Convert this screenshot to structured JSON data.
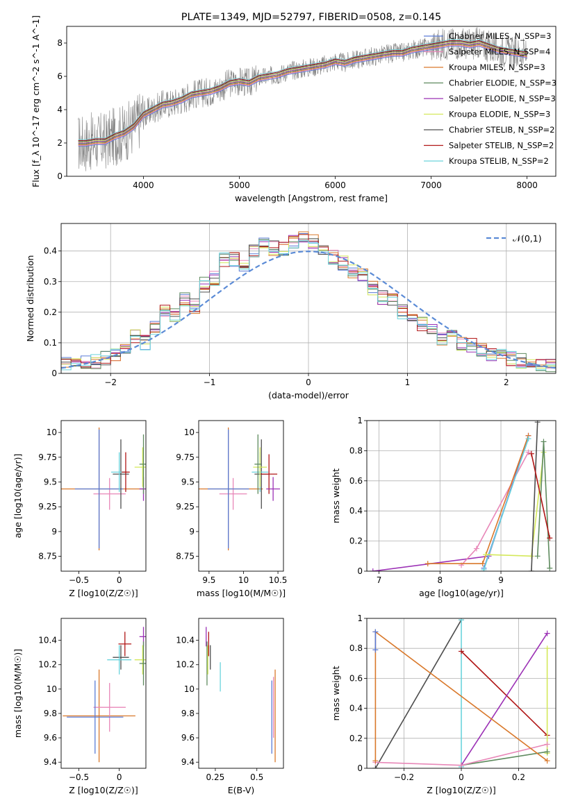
{
  "colors": {
    "chabrier_miles": "#5a7bd6",
    "salpeter_miles": "#e887b8",
    "kroupa_miles": "#d9782a",
    "chabrier_elodie": "#5e8a5e",
    "salpeter_elodie": "#9b30b5",
    "kroupa_elodie": "#d4e85a",
    "chabrier_stelib": "#4d4d4d",
    "salpeter_stelib": "#b01515",
    "kroupa_stelib": "#6ad3dc",
    "data_spectrum": "#7f7f7f",
    "normal_curve": "#5b8bd6",
    "grid": "#b0b0b0"
  },
  "chart_data": [
    {
      "type": "line",
      "id": "spectrum",
      "title": "PLATE=1349, MJD=52797, FIBERID=0508, z=0.145",
      "xlabel": "wavelength [Angstrom, rest frame]",
      "ylabel": "Flux [f_λ 10^-17 erg cm^-2 s^-1 A^-1]",
      "xlim": [
        3200,
        8300
      ],
      "ylim": [
        0,
        9
      ],
      "xticks": [
        4000,
        5000,
        6000,
        7000,
        8000
      ],
      "yticks": [
        0,
        2,
        4,
        6,
        8
      ],
      "grid": false,
      "legend_position": "top-right",
      "legend": [
        {
          "label": "Chabrier MILES, N_SSP=3",
          "color_key": "chabrier_miles"
        },
        {
          "label": "Salpeter MILES, N_SSP=4",
          "color_key": "salpeter_miles"
        },
        {
          "label": "Kroupa MILES, N_SSP=3",
          "color_key": "kroupa_miles"
        },
        {
          "label": "Chabrier ELODIE, N_SSP=3",
          "color_key": "chabrier_elodie"
        },
        {
          "label": "Salpeter ELODIE, N_SSP=3",
          "color_key": "salpeter_elodie"
        },
        {
          "label": "Kroupa ELODIE, N_SSP=3",
          "color_key": "kroupa_elodie"
        },
        {
          "label": "Chabrier STELIB, N_SSP=2",
          "color_key": "chabrier_stelib"
        },
        {
          "label": "Salpeter STELIB, N_SSP=2",
          "color_key": "salpeter_stelib"
        },
        {
          "label": "Kroupa STELIB, N_SSP=2",
          "color_key": "kroupa_stelib"
        }
      ],
      "model_curve": {
        "x": [
          3320,
          3400,
          3500,
          3600,
          3700,
          3800,
          3900,
          4000,
          4100,
          4200,
          4300,
          4400,
          4500,
          4600,
          4700,
          4800,
          4900,
          5000,
          5100,
          5200,
          5300,
          5400,
          5500,
          5600,
          5700,
          5800,
          5900,
          6000,
          6100,
          6200,
          6300,
          6400,
          6500,
          6600,
          6700,
          6800,
          6900,
          7000,
          7100,
          7200,
          7300,
          7400,
          7500,
          7600,
          7700,
          7800,
          7900,
          8000
        ],
        "y": [
          2.0,
          2.0,
          2.1,
          2.1,
          2.4,
          2.6,
          3.0,
          3.7,
          4.0,
          4.3,
          4.4,
          4.6,
          4.9,
          5.0,
          5.1,
          5.3,
          5.6,
          5.7,
          5.6,
          5.9,
          6.0,
          6.1,
          6.3,
          6.4,
          6.5,
          6.6,
          6.7,
          6.9,
          6.8,
          7.0,
          7.1,
          7.2,
          7.3,
          7.4,
          7.4,
          7.6,
          7.7,
          7.8,
          7.9,
          8.0,
          8.0,
          7.9,
          8.0,
          7.8,
          7.6,
          7.5,
          7.4,
          7.3
        ]
      }
    },
    {
      "type": "line",
      "id": "residuals",
      "xlabel": "(data-model)/error",
      "ylabel": "Normed distribution",
      "xlim": [
        -2.5,
        2.5
      ],
      "ylim": [
        0,
        0.49
      ],
      "xticks": [
        -2,
        -1,
        0,
        1,
        2
      ],
      "yticks": [
        0.0,
        0.1,
        0.2,
        0.3,
        0.4
      ],
      "grid": true,
      "legend_position": "top-right",
      "legend_label": "𝒩(0,1)",
      "histogram": {
        "x": [
          -2.45,
          -2.35,
          -2.25,
          -2.15,
          -2.05,
          -1.95,
          -1.85,
          -1.75,
          -1.65,
          -1.55,
          -1.45,
          -1.35,
          -1.25,
          -1.15,
          -1.05,
          -0.95,
          -0.85,
          -0.75,
          -0.65,
          -0.55,
          -0.45,
          -0.35,
          -0.25,
          -0.15,
          -0.05,
          0.05,
          0.15,
          0.25,
          0.35,
          0.45,
          0.55,
          0.65,
          0.75,
          0.85,
          0.95,
          1.05,
          1.15,
          1.25,
          1.35,
          1.45,
          1.55,
          1.65,
          1.75,
          1.85,
          1.95,
          2.05,
          2.15,
          2.25,
          2.35,
          2.45
        ],
        "y": [
          0.035,
          0.03,
          0.035,
          0.04,
          0.05,
          0.06,
          0.07,
          0.12,
          0.1,
          0.15,
          0.2,
          0.19,
          0.24,
          0.22,
          0.29,
          0.31,
          0.37,
          0.37,
          0.35,
          0.4,
          0.42,
          0.41,
          0.41,
          0.43,
          0.44,
          0.43,
          0.4,
          0.38,
          0.36,
          0.33,
          0.32,
          0.28,
          0.25,
          0.24,
          0.2,
          0.19,
          0.16,
          0.14,
          0.11,
          0.13,
          0.1,
          0.09,
          0.08,
          0.06,
          0.06,
          0.05,
          0.04,
          0.03,
          0.03,
          0.025
        ]
      }
    },
    {
      "type": "scatter",
      "id": "age_vs_Z",
      "xlabel": "Z [log10(Z/Z☉)]",
      "ylabel": "age [log10(age/yr)]",
      "xlim": [
        -0.72,
        0.33
      ],
      "ylim": [
        8.6,
        10.12
      ],
      "xticks": [
        -0.5,
        0.0
      ],
      "yticks": [
        8.75,
        9.0,
        9.25,
        9.5,
        9.75,
        10.0
      ],
      "grid": false,
      "points": [
        {
          "key": "kroupa_miles",
          "x": -0.25,
          "y": 9.43,
          "xerr": 0.55,
          "yerr": 0.62
        },
        {
          "key": "salpeter_miles",
          "x": -0.12,
          "y": 9.38,
          "xerr": 0.2,
          "yerr": 0.16
        },
        {
          "key": "chabrier_miles",
          "x": -0.25,
          "y": 9.43,
          "xerr": 0.3,
          "yerr": 0.6
        },
        {
          "key": "chabrier_stelib",
          "x": 0.02,
          "y": 9.58,
          "xerr": 0.1,
          "yerr": 0.35
        },
        {
          "key": "kroupa_stelib",
          "x": 0.0,
          "y": 9.6,
          "xerr": 0.1,
          "yerr": 0.2
        },
        {
          "key": "salpeter_stelib",
          "x": 0.08,
          "y": 9.6,
          "xerr": 0.05,
          "yerr": 0.2
        },
        {
          "key": "salpeter_elodie",
          "x": 0.3,
          "y": 9.43,
          "xerr": 0.05,
          "yerr": 0.12
        },
        {
          "key": "kroupa_elodie",
          "x": 0.29,
          "y": 9.65,
          "xerr": 0.1,
          "yerr": 0.2
        },
        {
          "key": "chabrier_elodie",
          "x": 0.3,
          "y": 9.68,
          "xerr": 0.05,
          "yerr": 0.3
        }
      ]
    },
    {
      "type": "scatter",
      "id": "age_vs_mass",
      "xlabel": "mass [log10(M/M☉)]",
      "ylabel": "",
      "xlim": [
        9.35,
        10.58
      ],
      "ylim": [
        8.6,
        10.12
      ],
      "xticks": [
        9.5,
        10.0,
        10.5
      ],
      "yticks": [
        8.75,
        9.0,
        9.25,
        9.5,
        9.75,
        10.0
      ],
      "grid": false,
      "points": [
        {
          "key": "kroupa_miles",
          "x": 9.78,
          "y": 9.43,
          "xerr": 0.5,
          "yerr": 0.62
        },
        {
          "key": "salpeter_miles",
          "x": 9.85,
          "y": 9.38,
          "xerr": 0.2,
          "yerr": 0.16
        },
        {
          "key": "chabrier_miles",
          "x": 9.78,
          "y": 9.43,
          "xerr": 0.3,
          "yerr": 0.6
        },
        {
          "key": "chabrier_stelib",
          "x": 10.26,
          "y": 9.58,
          "xerr": 0.1,
          "yerr": 0.35
        },
        {
          "key": "kroupa_stelib",
          "x": 10.24,
          "y": 9.6,
          "xerr": 0.12,
          "yerr": 0.2
        },
        {
          "key": "salpeter_stelib",
          "x": 10.37,
          "y": 9.58,
          "xerr": 0.12,
          "yerr": 0.2
        },
        {
          "key": "salpeter_elodie",
          "x": 10.43,
          "y": 9.43,
          "xerr": 0.1,
          "yerr": 0.12
        },
        {
          "key": "kroupa_elodie",
          "x": 10.24,
          "y": 9.65,
          "xerr": 0.1,
          "yerr": 0.2
        },
        {
          "key": "chabrier_elodie",
          "x": 10.21,
          "y": 9.68,
          "xerr": 0.05,
          "yerr": 0.3
        }
      ]
    },
    {
      "type": "line",
      "id": "weight_vs_age",
      "xlabel": "age [log10(age/yr)]",
      "ylabel": "mass weight",
      "xlim": [
        6.8,
        9.9
      ],
      "ylim": [
        0,
        1.0
      ],
      "xticks": [
        7,
        8,
        9
      ],
      "yticks": [
        0.0,
        0.2,
        0.4,
        0.6,
        0.8,
        1.0
      ],
      "grid": true,
      "series": [
        {
          "key": "salpeter_elodie",
          "x": [
            6.9,
            8.8,
            9.45
          ],
          "y": [
            0.0,
            0.1,
            0.9
          ]
        },
        {
          "key": "salpeter_miles",
          "x": [
            8.35,
            8.6,
            9.45
          ],
          "y": [
            0.04,
            0.15,
            0.79
          ]
        },
        {
          "key": "kroupa_miles",
          "x": [
            7.8,
            8.7,
            9.45
          ],
          "y": [
            0.05,
            0.05,
            0.9
          ]
        },
        {
          "key": "chabrier_miles",
          "x": [
            8.72,
            9.45
          ],
          "y": [
            0.02,
            0.88
          ]
        },
        {
          "key": "kroupa_stelib",
          "x": [
            8.72,
            9.45
          ],
          "y": [
            0.01,
            0.88
          ]
        },
        {
          "key": "kroupa_elodie",
          "x": [
            8.75,
            9.5,
            9.7
          ],
          "y": [
            0.11,
            0.1,
            0.79
          ]
        },
        {
          "key": "chabrier_elodie",
          "x": [
            9.6,
            9.7,
            9.8
          ],
          "y": [
            0.1,
            0.86,
            0.02
          ]
        },
        {
          "key": "chabrier_stelib",
          "x": [
            9.5,
            9.6
          ],
          "y": [
            0.0,
            0.99
          ]
        },
        {
          "key": "salpeter_stelib",
          "x": [
            9.5,
            9.8
          ],
          "y": [
            0.78,
            0.22
          ]
        }
      ]
    },
    {
      "type": "scatter",
      "id": "mass_vs_Z",
      "xlabel": "Z [log10(Z/Z☉)]",
      "ylabel": "mass [log10(M/M☉)]",
      "xlim": [
        -0.72,
        0.33
      ],
      "ylim": [
        9.35,
        10.58
      ],
      "xticks": [
        -0.5,
        0.0
      ],
      "yticks": [
        9.4,
        9.6,
        9.8,
        10.0,
        10.2,
        10.4
      ],
      "grid": false,
      "points": [
        {
          "key": "kroupa_miles",
          "x": -0.25,
          "y": 9.78,
          "xerr": 0.45,
          "yerr": 0.38
        },
        {
          "key": "salpeter_miles",
          "x": -0.12,
          "y": 9.85,
          "xerr": 0.2,
          "yerr": 0.2
        },
        {
          "key": "chabrier_miles",
          "x": -0.3,
          "y": 9.77,
          "xerr": 0.35,
          "yerr": 0.3
        },
        {
          "key": "chabrier_stelib",
          "x": 0.02,
          "y": 10.26,
          "xerr": 0.1,
          "yerr": 0.1
        },
        {
          "key": "kroupa_stelib",
          "x": 0.0,
          "y": 10.24,
          "xerr": 0.15,
          "yerr": 0.12
        },
        {
          "key": "salpeter_stelib",
          "x": 0.07,
          "y": 10.37,
          "xerr": 0.08,
          "yerr": 0.1
        },
        {
          "key": "salpeter_elodie",
          "x": 0.3,
          "y": 10.43,
          "xerr": 0.05,
          "yerr": 0.08
        },
        {
          "key": "kroupa_elodie",
          "x": 0.29,
          "y": 10.24,
          "xerr": 0.1,
          "yerr": 0.12
        },
        {
          "key": "chabrier_elodie",
          "x": 0.3,
          "y": 10.21,
          "xerr": 0.05,
          "yerr": 0.18
        }
      ]
    },
    {
      "type": "scatter",
      "id": "mass_vs_ebv",
      "xlabel": "E(B-V)",
      "ylabel": "",
      "xlim": [
        0.15,
        0.66
      ],
      "ylim": [
        9.35,
        10.58
      ],
      "xticks": [
        0.25,
        0.5
      ],
      "yticks": [
        9.4,
        9.6,
        9.8,
        10.0,
        10.2,
        10.4
      ],
      "grid": false,
      "points": [
        {
          "key": "salpeter_elodie",
          "x": 0.195,
          "y": 10.43,
          "xerr": 0.0,
          "yerr": 0.08
        },
        {
          "key": "chabrier_elodie",
          "x": 0.2,
          "y": 10.21,
          "xerr": 0.0,
          "yerr": 0.18
        },
        {
          "key": "kroupa_elodie",
          "x": 0.205,
          "y": 10.24,
          "xerr": 0.0,
          "yerr": 0.12
        },
        {
          "key": "salpeter_stelib",
          "x": 0.21,
          "y": 10.37,
          "xerr": 0.0,
          "yerr": 0.1
        },
        {
          "key": "chabrier_stelib",
          "x": 0.22,
          "y": 10.26,
          "xerr": 0.0,
          "yerr": 0.1
        },
        {
          "key": "kroupa_stelib",
          "x": 0.28,
          "y": 10.1,
          "xerr": 0.0,
          "yerr": 0.12
        },
        {
          "key": "chabrier_miles",
          "x": 0.59,
          "y": 9.77,
          "xerr": 0.0,
          "yerr": 0.3
        },
        {
          "key": "salpeter_miles",
          "x": 0.6,
          "y": 9.85,
          "xerr": 0.0,
          "yerr": 0.25
        },
        {
          "key": "kroupa_miles",
          "x": 0.61,
          "y": 9.78,
          "xerr": 0.0,
          "yerr": 0.38
        }
      ]
    },
    {
      "type": "line",
      "id": "weight_vs_Z",
      "xlabel": "Z [log10(Z/Z☉)]",
      "ylabel": "mass weight",
      "xlim": [
        -0.33,
        0.33
      ],
      "ylim": [
        0,
        1.0
      ],
      "xticks": [
        -0.2,
        0.0,
        0.2
      ],
      "yticks": [
        0.0,
        0.2,
        0.4,
        0.6,
        0.8,
        1.0
      ],
      "grid": true,
      "series": [
        {
          "key": "chabrier_stelib",
          "x": [
            -0.3,
            0.0
          ],
          "y": [
            0.0,
            0.99
          ]
        },
        {
          "key": "kroupa_stelib",
          "x": [
            0.0,
            0.0
          ],
          "y": [
            0.01,
            0.99
          ]
        },
        {
          "key": "salpeter_stelib",
          "x": [
            0.0,
            0.3
          ],
          "y": [
            0.78,
            0.22
          ]
        },
        {
          "key": "salpeter_elodie",
          "x": [
            0.0,
            0.3
          ],
          "y": [
            0.02,
            0.9
          ]
        },
        {
          "key": "kroupa_elodie",
          "x": [
            0.3,
            0.3
          ],
          "y": [
            0.1,
            0.8
          ]
        },
        {
          "key": "chabrier_elodie",
          "x": [
            0.0,
            0.3
          ],
          "y": [
            0.02,
            0.11
          ]
        },
        {
          "key": "salpeter_miles",
          "x": [
            -0.3,
            0.0,
            0.3
          ],
          "y": [
            0.04,
            0.02,
            0.16
          ]
        },
        {
          "key": "kroupa_miles",
          "x": [
            -0.3,
            -0.3,
            0.3
          ],
          "y": [
            0.05,
            0.91,
            0.05
          ]
        },
        {
          "key": "chabrier_miles",
          "x": [
            -0.3,
            -0.3
          ],
          "y": [
            0.79,
            0.91
          ]
        }
      ]
    }
  ]
}
